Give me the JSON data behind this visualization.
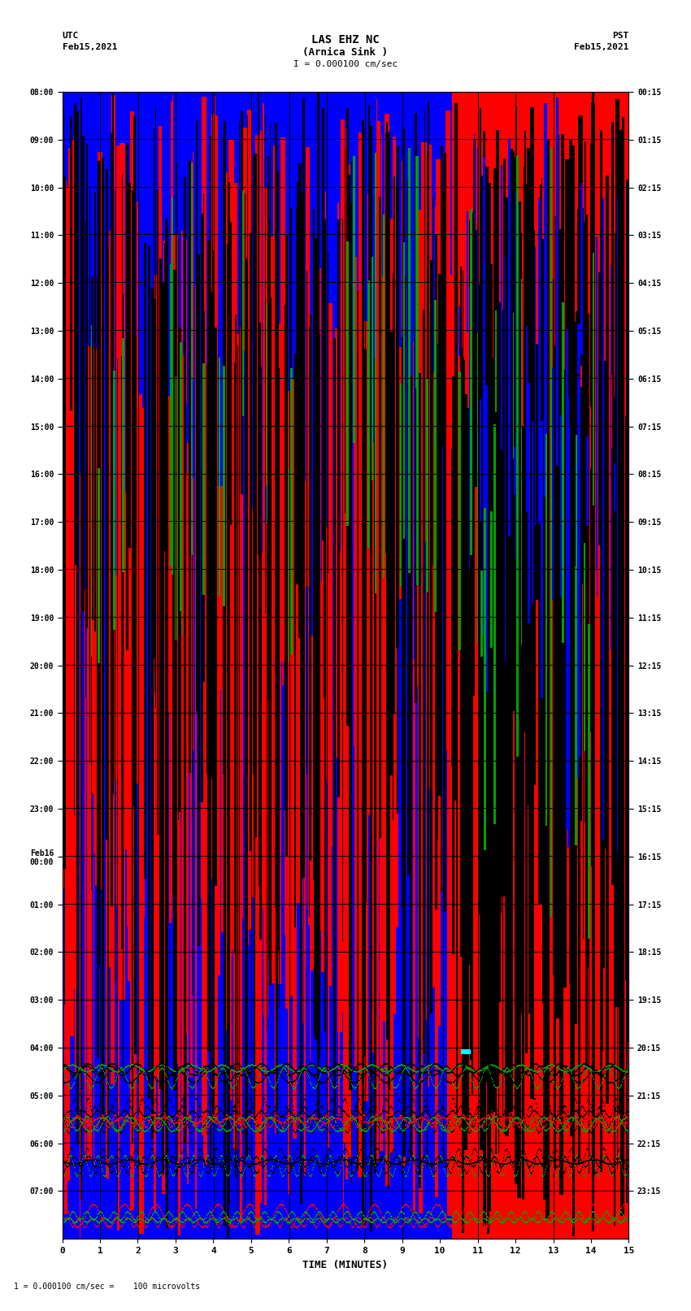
{
  "title_line1": "LAS EHZ NC",
  "title_line2": "(Arnica Sink )",
  "scale_text": "I = 0.000100 cm/sec",
  "utc_label": "UTC",
  "utc_date": "Feb15,2021",
  "pst_label": "PST",
  "pst_date": "Feb15,2021",
  "xlabel": "TIME (MINUTES)",
  "xmin": 0,
  "xmax": 15,
  "bottom_note": "1 = 0.000100 cm/sec =    100 microvolts",
  "ytick_labels_left": [
    "08:00",
    "09:00",
    "10:00",
    "11:00",
    "12:00",
    "13:00",
    "14:00",
    "15:00",
    "16:00",
    "17:00",
    "18:00",
    "19:00",
    "20:00",
    "21:00",
    "22:00",
    "23:00",
    "Feb16\n00:00",
    "01:00",
    "02:00",
    "03:00",
    "04:00",
    "05:00",
    "06:00",
    "07:00"
  ],
  "ytick_labels_right": [
    "00:15",
    "01:15",
    "02:15",
    "03:15",
    "04:15",
    "05:15",
    "06:15",
    "07:15",
    "08:15",
    "09:15",
    "10:15",
    "11:15",
    "12:15",
    "13:15",
    "14:15",
    "15:15",
    "16:15",
    "17:15",
    "18:15",
    "19:15",
    "20:15",
    "21:15",
    "22:15",
    "23:15"
  ],
  "fig_width": 8.5,
  "fig_height": 16.13,
  "num_rows": 24,
  "num_cols": 15,
  "transition_minute": 10.3,
  "seed": 42
}
